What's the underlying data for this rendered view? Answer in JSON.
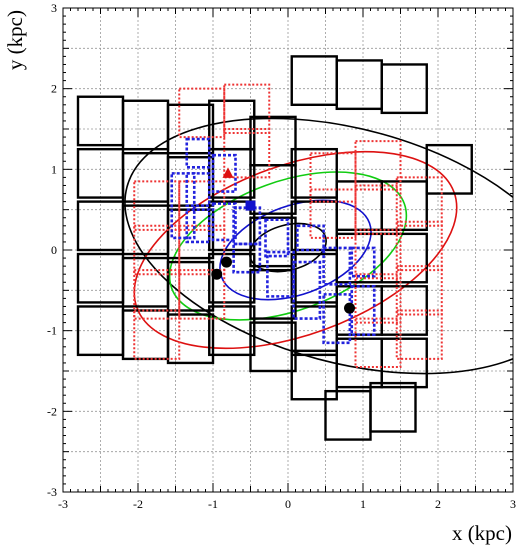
{
  "chart_data": {
    "type": "scatter",
    "title": "",
    "xlabel": "x (kpc)",
    "ylabel": "y (kpc)",
    "xlim": [
      -3,
      3
    ],
    "ylim": [
      -3,
      3
    ],
    "x_ticks": [
      "-3",
      "-2",
      "-1",
      "0",
      "1",
      "2",
      "3"
    ],
    "y_ticks": [
      "-3",
      "-2",
      "-1",
      "0",
      "1",
      "2",
      "3"
    ],
    "grid": true,
    "colors": {
      "black": "#000000",
      "red": "#dd1111",
      "green": "#11cc11",
      "blue": "#1111cc",
      "dotted_red": "#ee3333",
      "dotted_blue": "#2222dd"
    },
    "ellipses": [
      {
        "name": "contour-black-outer",
        "color": "#000000",
        "cx": 0.8,
        "cy": 0.05,
        "rx": 3.05,
        "ry": 1.45,
        "angle_deg": 15
      },
      {
        "name": "contour-red",
        "color": "#dd1111",
        "cx": 0.1,
        "cy": 0.0,
        "rx": 2.25,
        "ry": 1.05,
        "angle_deg": -20
      },
      {
        "name": "contour-green",
        "color": "#11cc11",
        "cx": 0.0,
        "cy": 0.05,
        "rx": 1.65,
        "ry": 0.8,
        "angle_deg": -20
      },
      {
        "name": "contour-blue",
        "color": "#1111cc",
        "cx": 0.1,
        "cy": 0.0,
        "rx": 1.05,
        "ry": 0.55,
        "angle_deg": -20
      },
      {
        "name": "contour-black-inner",
        "color": "#000000",
        "cx": 0.0,
        "cy": 0.03,
        "rx": 0.52,
        "ry": 0.28,
        "angle_deg": -15
      }
    ],
    "black_squares": [
      [
        -2.5,
        -1.0
      ],
      [
        -2.5,
        -0.35
      ],
      [
        -2.5,
        0.3
      ],
      [
        -2.5,
        0.95
      ],
      [
        -2.5,
        1.6
      ],
      [
        -1.9,
        -1.05
      ],
      [
        -1.9,
        -0.4
      ],
      [
        -1.9,
        0.25
      ],
      [
        -1.9,
        0.9
      ],
      [
        -1.9,
        1.55
      ],
      [
        -1.3,
        -1.1
      ],
      [
        -1.3,
        -0.45
      ],
      [
        -1.3,
        0.2
      ],
      [
        -1.3,
        0.85
      ],
      [
        -1.3,
        1.5
      ],
      [
        -0.75,
        -1.0
      ],
      [
        -0.75,
        -0.35
      ],
      [
        -0.75,
        0.3
      ],
      [
        -0.75,
        0.95
      ],
      [
        -0.75,
        1.55
      ],
      [
        -0.2,
        -1.2
      ],
      [
        -0.2,
        -0.55
      ],
      [
        -0.2,
        0.1
      ],
      [
        -0.2,
        0.75
      ],
      [
        -0.2,
        1.35
      ],
      [
        0.35,
        -1.0
      ],
      [
        0.35,
        -0.35
      ],
      [
        0.35,
        0.3
      ],
      [
        0.35,
        0.95
      ],
      [
        0.35,
        2.1
      ],
      [
        0.95,
        2.05
      ],
      [
        1.55,
        2.0
      ],
      [
        0.95,
        -0.75
      ],
      [
        0.95,
        -0.1
      ],
      [
        0.95,
        0.55
      ],
      [
        0.35,
        -1.55
      ],
      [
        0.95,
        -1.4
      ],
      [
        1.55,
        -1.4
      ],
      [
        1.55,
        -0.75
      ],
      [
        1.55,
        -0.1
      ],
      [
        1.55,
        0.55
      ],
      [
        2.15,
        1.0
      ],
      [
        0.8,
        -2.05
      ],
      [
        1.4,
        -1.95
      ]
    ],
    "black_square_size": 0.6,
    "red_dotted_squares": [
      [
        -1.75,
        0.55
      ],
      [
        -1.75,
        0.0
      ],
      [
        -1.75,
        -0.55
      ],
      [
        -1.75,
        -1.05
      ],
      [
        -1.15,
        0.55
      ],
      [
        -1.15,
        0.0
      ],
      [
        -1.15,
        -0.55
      ],
      [
        -1.15,
        1.7
      ],
      [
        -0.55,
        1.75
      ],
      [
        -0.55,
        1.2
      ],
      [
        0.6,
        0.45
      ],
      [
        0.6,
        0.9
      ],
      [
        1.2,
        -1.15
      ],
      [
        1.2,
        -0.6
      ],
      [
        1.2,
        -0.05
      ],
      [
        1.2,
        0.5
      ],
      [
        1.2,
        1.05
      ],
      [
        1.75,
        0.05
      ],
      [
        1.75,
        0.6
      ],
      [
        1.75,
        -0.5
      ],
      [
        1.75,
        -1.05
      ]
    ],
    "red_dotted_size": 0.6,
    "blue_dotted_rects": [
      [
        -1.2,
        1.2,
        0.3,
        0.35
      ],
      [
        -1.2,
        0.75,
        0.3,
        0.4
      ],
      [
        -1.2,
        0.3,
        0.3,
        0.4
      ],
      [
        -0.85,
        0.95,
        0.3,
        0.45
      ],
      [
        -0.85,
        0.35,
        0.3,
        0.45
      ],
      [
        -1.4,
        0.55,
        0.3,
        0.8
      ],
      [
        -0.55,
        0.3,
        0.35,
        0.45
      ],
      [
        -0.55,
        -0.1,
        0.35,
        0.35
      ],
      [
        -0.15,
        0.15,
        0.3,
        0.45
      ],
      [
        -0.1,
        -0.3,
        0.35,
        0.55
      ],
      [
        0.25,
        -0.5,
        0.35,
        0.7
      ],
      [
        0.3,
        0.15,
        0.35,
        0.3
      ],
      [
        0.65,
        -0.85,
        0.35,
        0.6
      ],
      [
        0.65,
        -0.2,
        0.35,
        0.45
      ],
      [
        1.0,
        -0.75,
        0.3,
        0.6
      ],
      [
        1.0,
        -0.15,
        0.3,
        0.35
      ]
    ],
    "markers": [
      {
        "name": "red-triangle",
        "shape": "triangle",
        "color": "#dd1111",
        "x": -0.8,
        "y": 0.95
      },
      {
        "name": "blue-square",
        "shape": "square",
        "color": "#1111cc",
        "x": -0.5,
        "y": 0.55
      },
      {
        "name": "black-circle-1",
        "shape": "circle",
        "color": "#000000",
        "x": -0.82,
        "y": -0.15
      },
      {
        "name": "black-circle-2",
        "shape": "circle",
        "color": "#000000",
        "x": -0.95,
        "y": -0.3
      },
      {
        "name": "black-circle-3",
        "shape": "circle",
        "color": "#000000",
        "x": 0.82,
        "y": -0.72
      }
    ]
  }
}
